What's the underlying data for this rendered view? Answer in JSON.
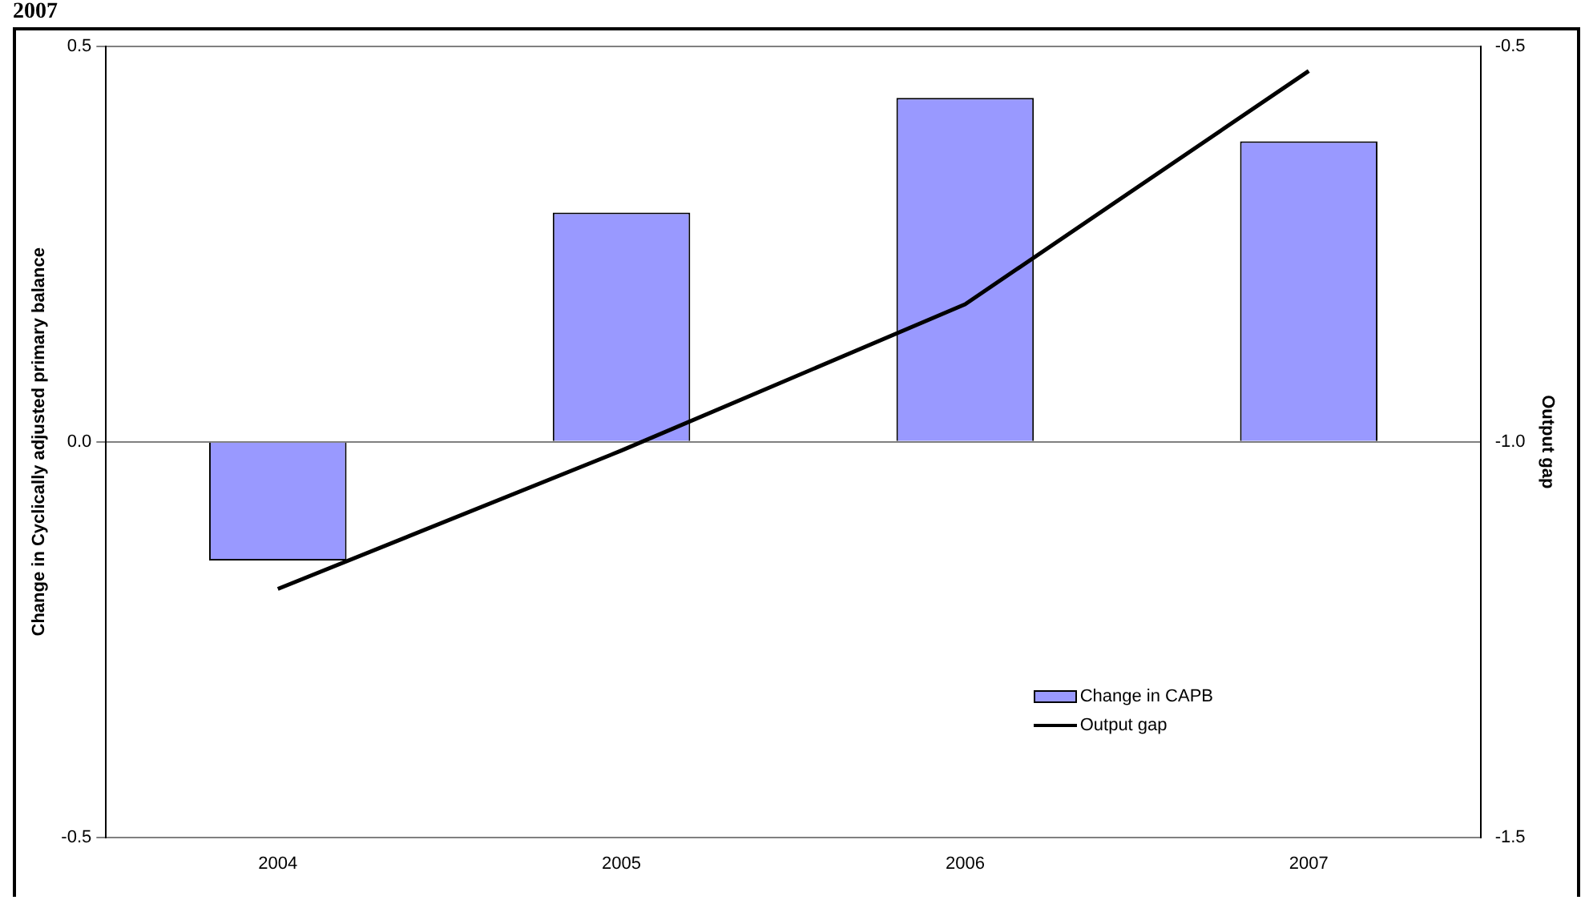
{
  "chart_data": {
    "type": "bar",
    "title": "2007",
    "categories": [
      "2004",
      "2005",
      "2006",
      "2007"
    ],
    "series": [
      {
        "name": "Change in CAPB",
        "color": "#9999ff",
        "values": [
          -0.15,
          0.29,
          0.435,
          0.38
        ]
      },
      {
        "name": "Output gap",
        "type": "line",
        "axis": "y2",
        "color": "#000000",
        "values": [
          -1.186,
          -1.011,
          -0.826,
          -0.531
        ]
      }
    ],
    "ylabel": "Change in Cyclically adjusted primary balance",
    "y2label": "Output gap",
    "ylim": [
      -0.5,
      0.5
    ],
    "yticks": [
      -0.5,
      {
        "value": 0,
        "label": "0.0"
      },
      0.5
    ],
    "y2lim": [
      -1.5,
      -0.5
    ],
    "y2ticks": [
      -1.5,
      {
        "value": -1,
        "label": "-1.0"
      },
      -0.5
    ],
    "grid": "y",
    "legend": "bottom right",
    "marker": "none"
  }
}
